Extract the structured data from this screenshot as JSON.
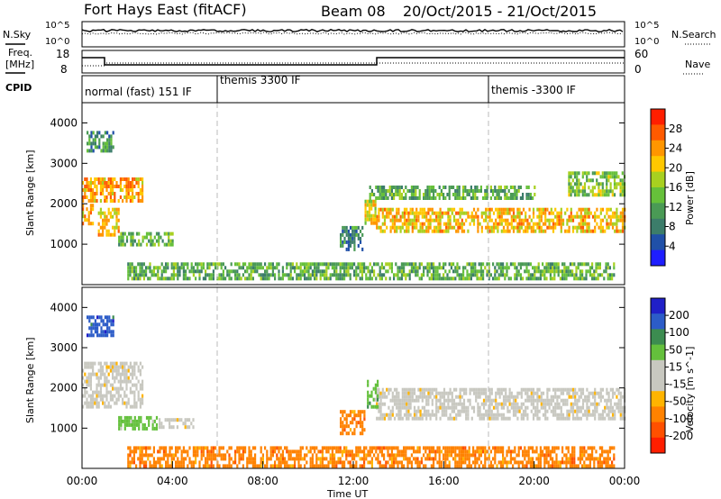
{
  "header": {
    "station": "Fort Hays East (fitACF)",
    "beam": "Beam 08",
    "date_range": "20/Oct/2015 - 21/Oct/2015"
  },
  "noise_panel": {
    "left_label": "N.Sky",
    "right_label": "N.Search",
    "y_top": "10^5",
    "y_bottom": "10^0"
  },
  "freq_panel": {
    "left_label_line1": "Freq.",
    "left_label_line2": "[MHz]",
    "right_label": "Nave",
    "left_ticks": [
      "18",
      "8"
    ],
    "right_ticks": [
      "60",
      "0"
    ]
  },
  "cpid_panel": {
    "label": "CPID",
    "modes": [
      "normal (fast) 151 IF",
      "themis 3300 IF",
      "themis -3300 IF"
    ]
  },
  "colors": {
    "power": [
      "#1e1eff",
      "#2050a8",
      "#3c7d6a",
      "#4a9a55",
      "#66c03a",
      "#a8d020",
      "#ffc800",
      "#ff9600",
      "#ff5a00",
      "#ff1e00"
    ],
    "velocity": [
      "#2020c8",
      "#2c5cc8",
      "#3c8c50",
      "#64c03c",
      "#c8c8c0",
      "#c8c8c0",
      "#ffb400",
      "#ff8200",
      "#ff5000",
      "#ff1e00"
    ]
  },
  "chart_data": [
    {
      "type": "heatmap",
      "panel": "power",
      "ylabel": "Slant Range [km]",
      "yticks": [
        "1000",
        "2000",
        "3000",
        "4000"
      ],
      "ylim": [
        0,
        4500
      ],
      "colorbar_label": "Power [dB]",
      "colorbar_ticks": [
        "4",
        "8",
        "12",
        "16",
        "20",
        "24",
        "28"
      ],
      "colorbar_range": [
        0,
        30
      ],
      "regions": [
        {
          "x0": 0.0,
          "x1": 2.7,
          "y0": 2100,
          "y1": 2650,
          "level": 22
        },
        {
          "x0": 0.0,
          "x1": 0.5,
          "y0": 1550,
          "y1": 2000,
          "level": 21
        },
        {
          "x0": 0.7,
          "x1": 1.6,
          "y0": 1250,
          "y1": 1900,
          "level": 20
        },
        {
          "x0": 1.6,
          "x1": 4.0,
          "y0": 950,
          "y1": 1300,
          "level": 12
        },
        {
          "x0": 0.2,
          "x1": 1.4,
          "y0": 3300,
          "y1": 3800,
          "level": 10
        },
        {
          "x0": 13.0,
          "x1": 24.0,
          "y0": 1300,
          "y1": 1900,
          "level": 20
        },
        {
          "x0": 12.5,
          "x1": 13.0,
          "y0": 1500,
          "y1": 2100,
          "level": 18
        },
        {
          "x0": 11.4,
          "x1": 12.4,
          "y0": 900,
          "y1": 1450,
          "level": 8
        },
        {
          "x0": 12.7,
          "x1": 20.0,
          "y0": 2150,
          "y1": 2450,
          "level": 12
        },
        {
          "x0": 21.5,
          "x1": 24.0,
          "y0": 2250,
          "y1": 2800,
          "level": 14
        },
        {
          "x0": 2.0,
          "x1": 23.5,
          "y0": 150,
          "y1": 550,
          "level": 12
        }
      ]
    },
    {
      "type": "heatmap",
      "panel": "velocity",
      "xlabel": "Time UT",
      "xticks": [
        "00:00",
        "04:00",
        "08:00",
        "12:00",
        "16:00",
        "20:00",
        "00:00"
      ],
      "xlim": [
        0,
        24
      ],
      "ylabel": "Slant Range [km]",
      "yticks": [
        "1000",
        "2000",
        "3000",
        "4000"
      ],
      "ylim": [
        0,
        4500
      ],
      "colorbar_label": "Velocity [m s^-1]",
      "colorbar_ticks": [
        "200",
        "100",
        "50",
        "15",
        "-15",
        "-50",
        "-100",
        "-200"
      ],
      "colorbar_range": [
        -250,
        250
      ],
      "regions": [
        {
          "x0": 0.0,
          "x1": 2.7,
          "y0": 1550,
          "y1": 2650,
          "level": 5
        },
        {
          "x0": 1.6,
          "x1": 3.3,
          "y0": 950,
          "y1": 1300,
          "level": 3
        },
        {
          "x0": 3.3,
          "x1": 4.9,
          "y0": 1050,
          "y1": 1250,
          "level": 5
        },
        {
          "x0": 13.0,
          "x1": 24.0,
          "y0": 1250,
          "y1": 2000,
          "level": 5
        },
        {
          "x0": 12.6,
          "x1": 13.1,
          "y0": 1500,
          "y1": 2200,
          "level": 3
        },
        {
          "x0": 11.4,
          "x1": 12.5,
          "y0": 900,
          "y1": 1450,
          "level": 7
        },
        {
          "x0": 2.0,
          "x1": 23.5,
          "y0": 100,
          "y1": 550,
          "level": 7
        },
        {
          "x0": 0.2,
          "x1": 1.4,
          "y0": 3300,
          "y1": 3800,
          "level": 1
        }
      ]
    }
  ]
}
